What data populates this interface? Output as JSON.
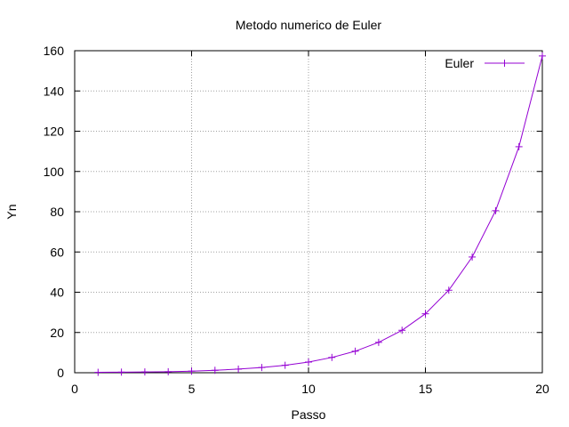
{
  "chart_data": {
    "type": "line",
    "title": "Metodo numerico de  Euler",
    "xlabel": "Passo",
    "ylabel": "Yn",
    "xlim": [
      0,
      20
    ],
    "ylim": [
      0,
      160
    ],
    "xticks": [
      0,
      5,
      10,
      15,
      20
    ],
    "yticks": [
      0,
      20,
      40,
      60,
      80,
      100,
      120,
      140,
      160
    ],
    "grid": true,
    "legend_position": "top-right",
    "series": [
      {
        "name": "Euler",
        "color": "#9400d3",
        "marker": "plus",
        "x": [
          1,
          2,
          3,
          4,
          5,
          6,
          7,
          8,
          9,
          10,
          11,
          12,
          13,
          14,
          15,
          16,
          17,
          18,
          19,
          20
        ],
        "y": [
          0.2,
          0.3,
          0.4,
          0.5,
          0.8,
          1.2,
          1.8,
          2.6,
          3.7,
          5.3,
          7.6,
          10.7,
          15.1,
          21.1,
          29.3,
          41.0,
          57.5,
          80.5,
          112.3,
          157.4
        ]
      }
    ]
  }
}
